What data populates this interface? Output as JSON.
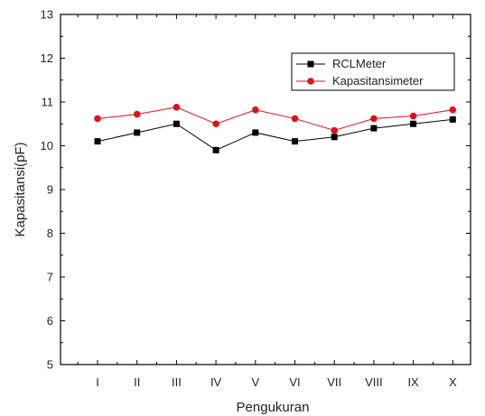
{
  "chart_data": {
    "type": "line",
    "title": "",
    "xlabel": "Pengukuran",
    "ylabel": "Kapasitansi(pF)",
    "categories": [
      "I",
      "II",
      "III",
      "IV",
      "V",
      "VI",
      "VII",
      "VIII",
      "IX",
      "X"
    ],
    "ylim": [
      5,
      13
    ],
    "yticks": [
      "5",
      "6",
      "7",
      "8",
      "9",
      "10",
      "11",
      "12",
      "13"
    ],
    "grid": false,
    "legend_position": "top-right",
    "series": [
      {
        "name": "RCLMeter",
        "marker": "square",
        "color": "#000000",
        "line_color": "#000000",
        "values": [
          10.1,
          10.3,
          10.5,
          9.9,
          10.3,
          10.1,
          10.2,
          10.4,
          10.5,
          10.6
        ]
      },
      {
        "name": "Kapasitansimeter",
        "marker": "circle",
        "color": "#e0101a",
        "line_color": "#e0101a",
        "values": [
          10.62,
          10.72,
          10.88,
          10.5,
          10.82,
          10.62,
          10.35,
          10.62,
          10.68,
          10.82
        ]
      }
    ]
  }
}
